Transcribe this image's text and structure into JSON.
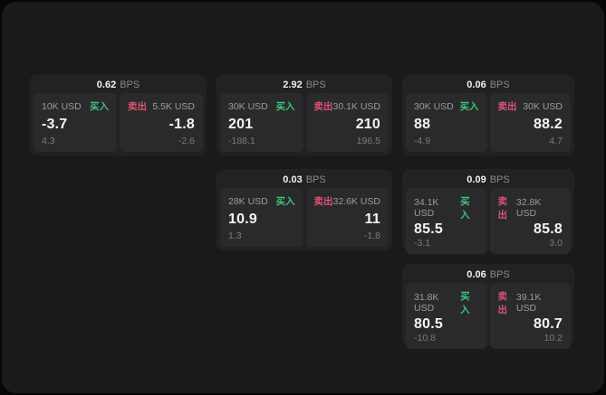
{
  "labels": {
    "buy": "买入",
    "sell": "卖出",
    "bps_unit": "BPS"
  },
  "colors": {
    "buy": "#3cc47c",
    "sell": "#dd5271",
    "surface": "#1a1a1c",
    "card": "#222224",
    "panel": "#2a2a2c"
  },
  "cards": [
    {
      "bps": "0.62",
      "row": 1,
      "col": 1,
      "buy": {
        "amount": "10K USD",
        "value": "-3.7",
        "delta": "4.3"
      },
      "sell": {
        "amount": "5.5K USD",
        "value": "-1.8",
        "delta": "-2.6"
      }
    },
    {
      "bps": "2.92",
      "row": 1,
      "col": 2,
      "buy": {
        "amount": "30K USD",
        "value": "201",
        "delta": "-188.1"
      },
      "sell": {
        "amount": "30.1K USD",
        "value": "210",
        "delta": "196.5"
      }
    },
    {
      "bps": "0.06",
      "row": 1,
      "col": 3,
      "buy": {
        "amount": "30K USD",
        "value": "88",
        "delta": "-4.9"
      },
      "sell": {
        "amount": "30K USD",
        "value": "88.2",
        "delta": "4.7"
      }
    },
    {
      "bps": "0.03",
      "row": 2,
      "col": 2,
      "buy": {
        "amount": "28K USD",
        "value": "10.9",
        "delta": "1.3"
      },
      "sell": {
        "amount": "32.6K USD",
        "value": "11",
        "delta": "-1.8"
      }
    },
    {
      "bps": "0.09",
      "row": 2,
      "col": 3,
      "buy": {
        "amount": "34.1K USD",
        "value": "85.5",
        "delta": "-3.1"
      },
      "sell": {
        "amount": "32.8K USD",
        "value": "85.8",
        "delta": "3.0"
      }
    },
    {
      "bps": "0.06",
      "row": 3,
      "col": 3,
      "buy": {
        "amount": "31.8K USD",
        "value": "80.5",
        "delta": "-10.8"
      },
      "sell": {
        "amount": "39.1K USD",
        "value": "80.7",
        "delta": "10.2"
      }
    }
  ]
}
